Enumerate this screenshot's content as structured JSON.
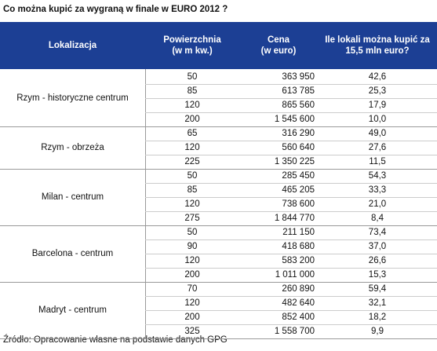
{
  "title": "Co można kupić za wygraną w finale w EURO 2012 ?",
  "table": {
    "headers": [
      [
        "Lokalizacja"
      ],
      [
        "Powierzchnia",
        "(w m kw.)"
      ],
      [
        "Cena",
        "(w euro)"
      ],
      [
        "Ile lokali można kupić za",
        "15,5 mln euro?"
      ]
    ],
    "groups": [
      {
        "location": "Rzym - historyczne centrum",
        "rows": [
          [
            "50",
            "363 950",
            "42,6"
          ],
          [
            "85",
            "613 785",
            "25,3"
          ],
          [
            "120",
            "865 560",
            "17,9"
          ],
          [
            "200",
            "1 545 600",
            "10,0"
          ]
        ]
      },
      {
        "location": "Rzym - obrzeża",
        "rows": [
          [
            "65",
            "316 290",
            "49,0"
          ],
          [
            "120",
            "560 640",
            "27,6"
          ],
          [
            "225",
            "1 350 225",
            "11,5"
          ]
        ]
      },
      {
        "location": "Milan - centrum",
        "rows": [
          [
            "50",
            "285 450",
            "54,3"
          ],
          [
            "85",
            "465 205",
            "33,3"
          ],
          [
            "120",
            "738 600",
            "21,0"
          ],
          [
            "275",
            "1 844 770",
            "8,4"
          ]
        ]
      },
      {
        "location": "Barcelona - centrum",
        "rows": [
          [
            "50",
            "211 150",
            "73,4"
          ],
          [
            "90",
            "418 680",
            "37,0"
          ],
          [
            "120",
            "583 200",
            "26,6"
          ],
          [
            "200",
            "1 011 000",
            "15,3"
          ]
        ]
      },
      {
        "location": "Madryt - centrum",
        "rows": [
          [
            "70",
            "260 890",
            "59,4"
          ],
          [
            "120",
            "482 640",
            "32,1"
          ],
          [
            "200",
            "852 400",
            "18,2"
          ],
          [
            "325",
            "1 558 700",
            "9,9"
          ]
        ]
      }
    ]
  },
  "source": "Źródło: Opracowanie własne na podstawie danych GPG"
}
